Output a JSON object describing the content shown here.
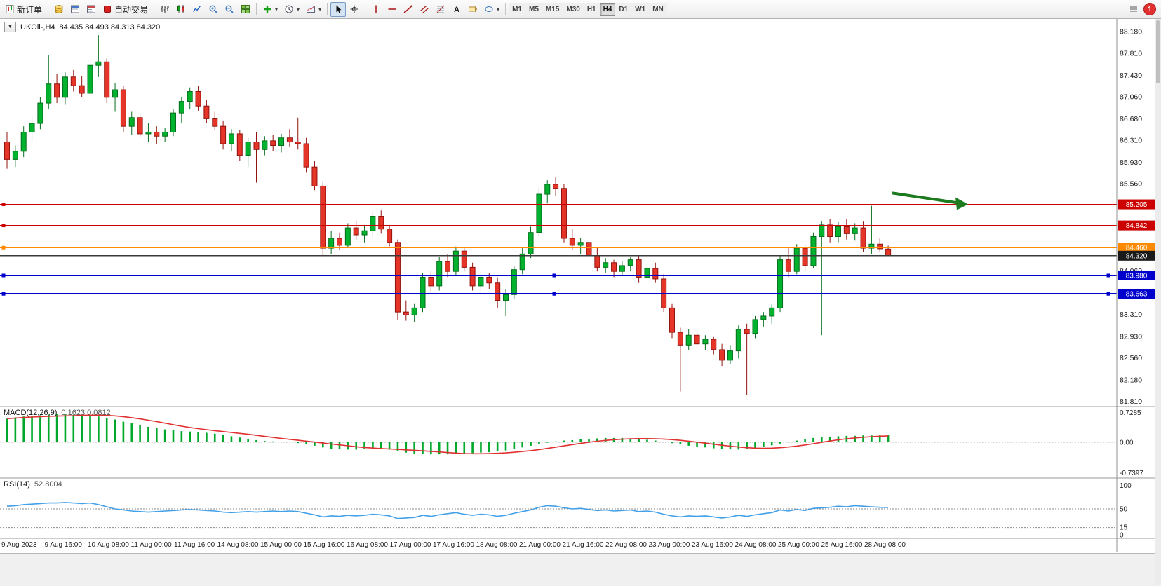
{
  "toolbar": {
    "new_order_label": "新订单",
    "autotrading_label": "自动交易",
    "notification_count": "1",
    "timeframes": {
      "items": [
        "M1",
        "M5",
        "M15",
        "M30",
        "H1",
        "H4",
        "D1",
        "W1",
        "MN"
      ],
      "active": "H4"
    }
  },
  "chart_data": {
    "type": "candlestick",
    "symbol_title": "UKOil-,H4",
    "ohlc_display": "84.435 84.493 84.313 84.320",
    "ylim": [
      81.71,
      88.4
    ],
    "price_axis_labels": [
      "88.180",
      "87.810",
      "87.430",
      "87.060",
      "86.680",
      "86.310",
      "85.930",
      "85.560",
      "84.060",
      "83.310",
      "82.930",
      "82.560",
      "82.180",
      "81.810"
    ],
    "colors": {
      "up": "#00b22d",
      "up_border": "#056e1c",
      "down": "#e53528",
      "down_border": "#93130d",
      "macd": "#00a82a",
      "macd_signal": "#e03030",
      "rsi": "#42a0e8",
      "red_line": "#cc0000",
      "orange_line": "#ff8a00",
      "blue_line": "#0000cc",
      "bid_line": "#3a3a3a",
      "arrow": "#1e7a1e"
    },
    "hlines": [
      {
        "label": "85.205",
        "price": 85.205,
        "color": "#cc0000",
        "badge_bg": "#cc0000",
        "width": 1.2,
        "handles": [
          5
        ]
      },
      {
        "label": "84.842",
        "price": 84.842,
        "color": "#cc0000",
        "badge_bg": "#cc0000",
        "width": 1.2,
        "handles": [
          5
        ]
      },
      {
        "label": "84.460",
        "price": 84.46,
        "color": "#ff8a00",
        "badge_bg": "#ff8a00",
        "width": 2,
        "handles": [
          5
        ]
      },
      {
        "label": "84.320",
        "price": 84.32,
        "color": "#3a3a3a",
        "badge_bg": "#1a1a1a",
        "width": 1.2,
        "handles": []
      },
      {
        "label": "83.980",
        "price": 83.98,
        "color": "#0000cc",
        "badge_bg": "#0000cc",
        "width": 2,
        "handles": [
          5,
          790,
          1580
        ]
      },
      {
        "label": "83.663",
        "price": 83.663,
        "color": "#0000cc",
        "badge_bg": "#0000cc",
        "width": 2,
        "handles": [
          5,
          790,
          1580
        ]
      }
    ],
    "arrow": {
      "x_from": 1272,
      "price_from": 85.4,
      "x_to": 1366,
      "price_to": 85.23,
      "color": "#1e7a1e"
    },
    "time_labels": [
      "9 Aug 2023",
      "9 Aug 16:00",
      "10 Aug 08:00",
      "11 Aug 00:00",
      "11 Aug 16:00",
      "14 Aug 08:00",
      "15 Aug 00:00",
      "15 Aug 16:00",
      "16 Aug 08:00",
      "17 Aug 00:00",
      "17 Aug 16:00",
      "18 Aug 08:00",
      "21 Aug 00:00",
      "21 Aug 16:00",
      "22 Aug 08:00",
      "23 Aug 00:00",
      "23 Aug 16:00",
      "24 Aug 08:00",
      "25 Aug 00:00",
      "25 Aug 16:00",
      "28 Aug 08:00"
    ],
    "candles": [
      [
        86.28,
        86.45,
        85.82,
        85.98
      ],
      [
        85.98,
        86.22,
        85.85,
        86.12
      ],
      [
        86.12,
        86.55,
        86.02,
        86.45
      ],
      [
        86.45,
        86.72,
        86.3,
        86.6
      ],
      [
        86.6,
        87.05,
        86.5,
        86.95
      ],
      [
        86.95,
        87.78,
        86.85,
        87.28
      ],
      [
        87.28,
        87.45,
        86.95,
        87.05
      ],
      [
        87.05,
        87.48,
        86.92,
        87.4
      ],
      [
        87.4,
        87.52,
        87.15,
        87.25
      ],
      [
        87.25,
        87.42,
        87.05,
        87.12
      ],
      [
        87.12,
        87.68,
        87.02,
        87.6
      ],
      [
        87.6,
        88.12,
        87.4,
        87.66
      ],
      [
        87.66,
        87.72,
        86.95,
        87.05
      ],
      [
        87.05,
        87.3,
        86.8,
        87.18
      ],
      [
        87.18,
        87.25,
        86.45,
        86.55
      ],
      [
        86.55,
        86.8,
        86.4,
        86.7
      ],
      [
        86.7,
        86.78,
        86.35,
        86.42
      ],
      [
        86.42,
        86.6,
        86.28,
        86.45
      ],
      [
        86.45,
        86.55,
        86.25,
        86.38
      ],
      [
        86.38,
        86.52,
        86.28,
        86.45
      ],
      [
        86.45,
        86.85,
        86.38,
        86.78
      ],
      [
        86.78,
        87.05,
        86.6,
        86.98
      ],
      [
        86.98,
        87.22,
        86.85,
        87.15
      ],
      [
        87.15,
        87.25,
        86.82,
        86.9
      ],
      [
        86.9,
        87.0,
        86.6,
        86.68
      ],
      [
        86.68,
        86.8,
        86.48,
        86.55
      ],
      [
        86.55,
        86.65,
        86.15,
        86.25
      ],
      [
        86.25,
        86.5,
        86.12,
        86.42
      ],
      [
        86.42,
        86.48,
        85.95,
        86.05
      ],
      [
        86.05,
        86.35,
        85.85,
        86.28
      ],
      [
        86.28,
        86.45,
        85.58,
        86.15
      ],
      [
        86.15,
        86.38,
        86.05,
        86.3
      ],
      [
        86.3,
        86.4,
        86.12,
        86.22
      ],
      [
        86.22,
        86.42,
        86.1,
        86.35
      ],
      [
        86.35,
        86.5,
        86.2,
        86.28
      ],
      [
        86.28,
        86.7,
        86.15,
        86.25
      ],
      [
        86.25,
        86.35,
        85.75,
        85.85
      ],
      [
        85.85,
        85.95,
        85.45,
        85.52
      ],
      [
        85.52,
        85.6,
        84.32,
        84.45
      ],
      [
        84.45,
        84.75,
        84.35,
        84.62
      ],
      [
        84.62,
        84.72,
        84.42,
        84.5
      ],
      [
        84.5,
        84.88,
        84.45,
        84.8
      ],
      [
        84.8,
        84.92,
        84.6,
        84.68
      ],
      [
        84.68,
        84.85,
        84.55,
        84.75
      ],
      [
        84.75,
        85.08,
        84.65,
        85.0
      ],
      [
        85.0,
        85.1,
        84.7,
        84.78
      ],
      [
        84.78,
        84.85,
        84.48,
        84.55
      ],
      [
        84.55,
        84.6,
        83.22,
        83.35
      ],
      [
        83.35,
        83.55,
        83.2,
        83.3
      ],
      [
        83.3,
        83.5,
        83.18,
        83.42
      ],
      [
        83.42,
        84.02,
        83.35,
        83.95
      ],
      [
        83.95,
        84.05,
        83.7,
        83.8
      ],
      [
        83.8,
        84.3,
        83.72,
        84.22
      ],
      [
        84.22,
        84.35,
        83.95,
        84.05
      ],
      [
        84.05,
        84.48,
        83.98,
        84.4
      ],
      [
        84.4,
        84.45,
        84.05,
        84.12
      ],
      [
        84.12,
        84.2,
        83.72,
        83.8
      ],
      [
        83.8,
        84.05,
        83.68,
        83.95
      ],
      [
        83.95,
        84.02,
        83.75,
        83.85
      ],
      [
        83.85,
        83.95,
        83.42,
        83.55
      ],
      [
        83.55,
        83.75,
        83.28,
        83.65
      ],
      [
        83.65,
        84.15,
        83.58,
        84.08
      ],
      [
        84.08,
        84.45,
        84.0,
        84.35
      ],
      [
        84.35,
        84.82,
        84.28,
        84.72
      ],
      [
        84.72,
        85.5,
        84.65,
        85.38
      ],
      [
        85.38,
        85.62,
        85.22,
        85.55
      ],
      [
        85.55,
        85.68,
        85.35,
        85.48
      ],
      [
        85.48,
        85.55,
        84.55,
        84.62
      ],
      [
        84.62,
        84.78,
        84.42,
        84.5
      ],
      [
        84.5,
        84.62,
        84.35,
        84.55
      ],
      [
        84.55,
        84.6,
        84.25,
        84.32
      ],
      [
        84.32,
        84.45,
        84.05,
        84.12
      ],
      [
        84.12,
        84.28,
        84.02,
        84.2
      ],
      [
        84.2,
        84.25,
        83.95,
        84.05
      ],
      [
        84.05,
        84.22,
        83.98,
        84.15
      ],
      [
        84.15,
        84.3,
        84.05,
        84.25
      ],
      [
        84.25,
        84.32,
        83.85,
        83.95
      ],
      [
        83.95,
        84.18,
        83.88,
        84.1
      ],
      [
        84.1,
        84.2,
        83.85,
        83.92
      ],
      [
        83.92,
        84.0,
        83.35,
        83.42
      ],
      [
        83.42,
        83.5,
        82.9,
        83.0
      ],
      [
        83.0,
        83.08,
        81.98,
        82.78
      ],
      [
        82.78,
        83.05,
        82.7,
        82.95
      ],
      [
        82.95,
        83.02,
        82.72,
        82.8
      ],
      [
        82.8,
        82.95,
        82.7,
        82.88
      ],
      [
        82.88,
        82.92,
        82.62,
        82.7
      ],
      [
        82.7,
        82.8,
        82.42,
        82.52
      ],
      [
        82.52,
        82.78,
        82.45,
        82.68
      ],
      [
        82.68,
        83.12,
        82.55,
        83.05
      ],
      [
        83.05,
        83.15,
        81.92,
        82.98
      ],
      [
        82.98,
        83.28,
        82.9,
        83.22
      ],
      [
        83.22,
        83.35,
        83.1,
        83.28
      ],
      [
        83.28,
        83.48,
        83.15,
        83.42
      ],
      [
        83.42,
        84.32,
        83.35,
        84.25
      ],
      [
        84.25,
        84.45,
        83.95,
        84.05
      ],
      [
        84.05,
        84.52,
        84.0,
        84.45
      ],
      [
        84.45,
        84.52,
        84.05,
        84.15
      ],
      [
        84.15,
        84.72,
        84.1,
        84.65
      ],
      [
        84.65,
        84.92,
        82.95,
        84.85
      ],
      [
        84.85,
        84.95,
        84.55,
        84.65
      ],
      [
        84.65,
        84.9,
        84.55,
        84.82
      ],
      [
        84.82,
        84.95,
        84.6,
        84.7
      ],
      [
        84.7,
        84.88,
        84.58,
        84.8
      ],
      [
        84.8,
        84.92,
        84.38,
        84.45
      ],
      [
        84.45,
        85.18,
        84.35,
        84.52
      ],
      [
        84.52,
        84.62,
        84.38,
        84.44
      ],
      [
        84.435,
        84.493,
        84.313,
        84.32
      ]
    ],
    "indicators": [
      {
        "name": "MACD(12,26,9)",
        "values_text": "0.1623 0.0812",
        "axis_labels": [
          "0.7285",
          "0.00",
          "-0.7397"
        ],
        "ylim": [
          -0.75,
          0.75
        ],
        "signal_is_sma9_of_histogram": true,
        "histogram": [
          0.55,
          0.58,
          0.6,
          0.62,
          0.63,
          0.64,
          0.65,
          0.65,
          0.64,
          0.63,
          0.62,
          0.6,
          0.57,
          0.53,
          0.48,
          0.44,
          0.4,
          0.36,
          0.33,
          0.3,
          0.28,
          0.26,
          0.25,
          0.24,
          0.22,
          0.2,
          0.17,
          0.14,
          0.11,
          0.08,
          0.05,
          0.03,
          0.02,
          0.01,
          0.0,
          -0.02,
          -0.05,
          -0.08,
          -0.12,
          -0.15,
          -0.16,
          -0.17,
          -0.17,
          -0.16,
          -0.15,
          -0.15,
          -0.17,
          -0.21,
          -0.24,
          -0.26,
          -0.27,
          -0.28,
          -0.28,
          -0.28,
          -0.27,
          -0.26,
          -0.25,
          -0.24,
          -0.23,
          -0.21,
          -0.19,
          -0.16,
          -0.12,
          -0.08,
          -0.04,
          -0.01,
          0.02,
          0.04,
          0.05,
          0.07,
          0.08,
          0.09,
          0.1,
          0.1,
          0.1,
          0.09,
          0.08,
          0.06,
          0.04,
          0.01,
          -0.02,
          -0.05,
          -0.08,
          -0.1,
          -0.12,
          -0.14,
          -0.15,
          -0.16,
          -0.17,
          -0.16,
          -0.14,
          -0.11,
          -0.07,
          -0.03,
          0.01,
          0.04,
          0.07,
          0.1,
          0.12,
          0.13,
          0.14,
          0.15,
          0.15,
          0.16,
          0.16,
          0.16,
          0.1623
        ]
      },
      {
        "name": "RSI(14)",
        "value_text": "52.8004",
        "axis_labels": [
          "100",
          "50",
          "15",
          "0"
        ],
        "levels": [
          50,
          15
        ],
        "ylim": [
          0,
          100
        ],
        "values": [
          55,
          56,
          58,
          59,
          60,
          61,
          61,
          62,
          61,
          60,
          61,
          58,
          54,
          50,
          48,
          46,
          45,
          44,
          45,
          46,
          47,
          48,
          49,
          48,
          47,
          46,
          44,
          43,
          44,
          45,
          44,
          45,
          46,
          45,
          46,
          45,
          42,
          39,
          35,
          37,
          36,
          38,
          37,
          38,
          40,
          39,
          37,
          32,
          33,
          34,
          38,
          36,
          39,
          41,
          43,
          40,
          38,
          40,
          39,
          36,
          38,
          42,
          45,
          48,
          53,
          56,
          55,
          52,
          50,
          51,
          49,
          47,
          48,
          46,
          47,
          48,
          45,
          46,
          44,
          40,
          37,
          35,
          37,
          36,
          37,
          35,
          33,
          35,
          38,
          36,
          39,
          41,
          43,
          48,
          46,
          49,
          47,
          51,
          52,
          53,
          55,
          54,
          56,
          55,
          54,
          53,
          52.8
        ]
      }
    ]
  }
}
